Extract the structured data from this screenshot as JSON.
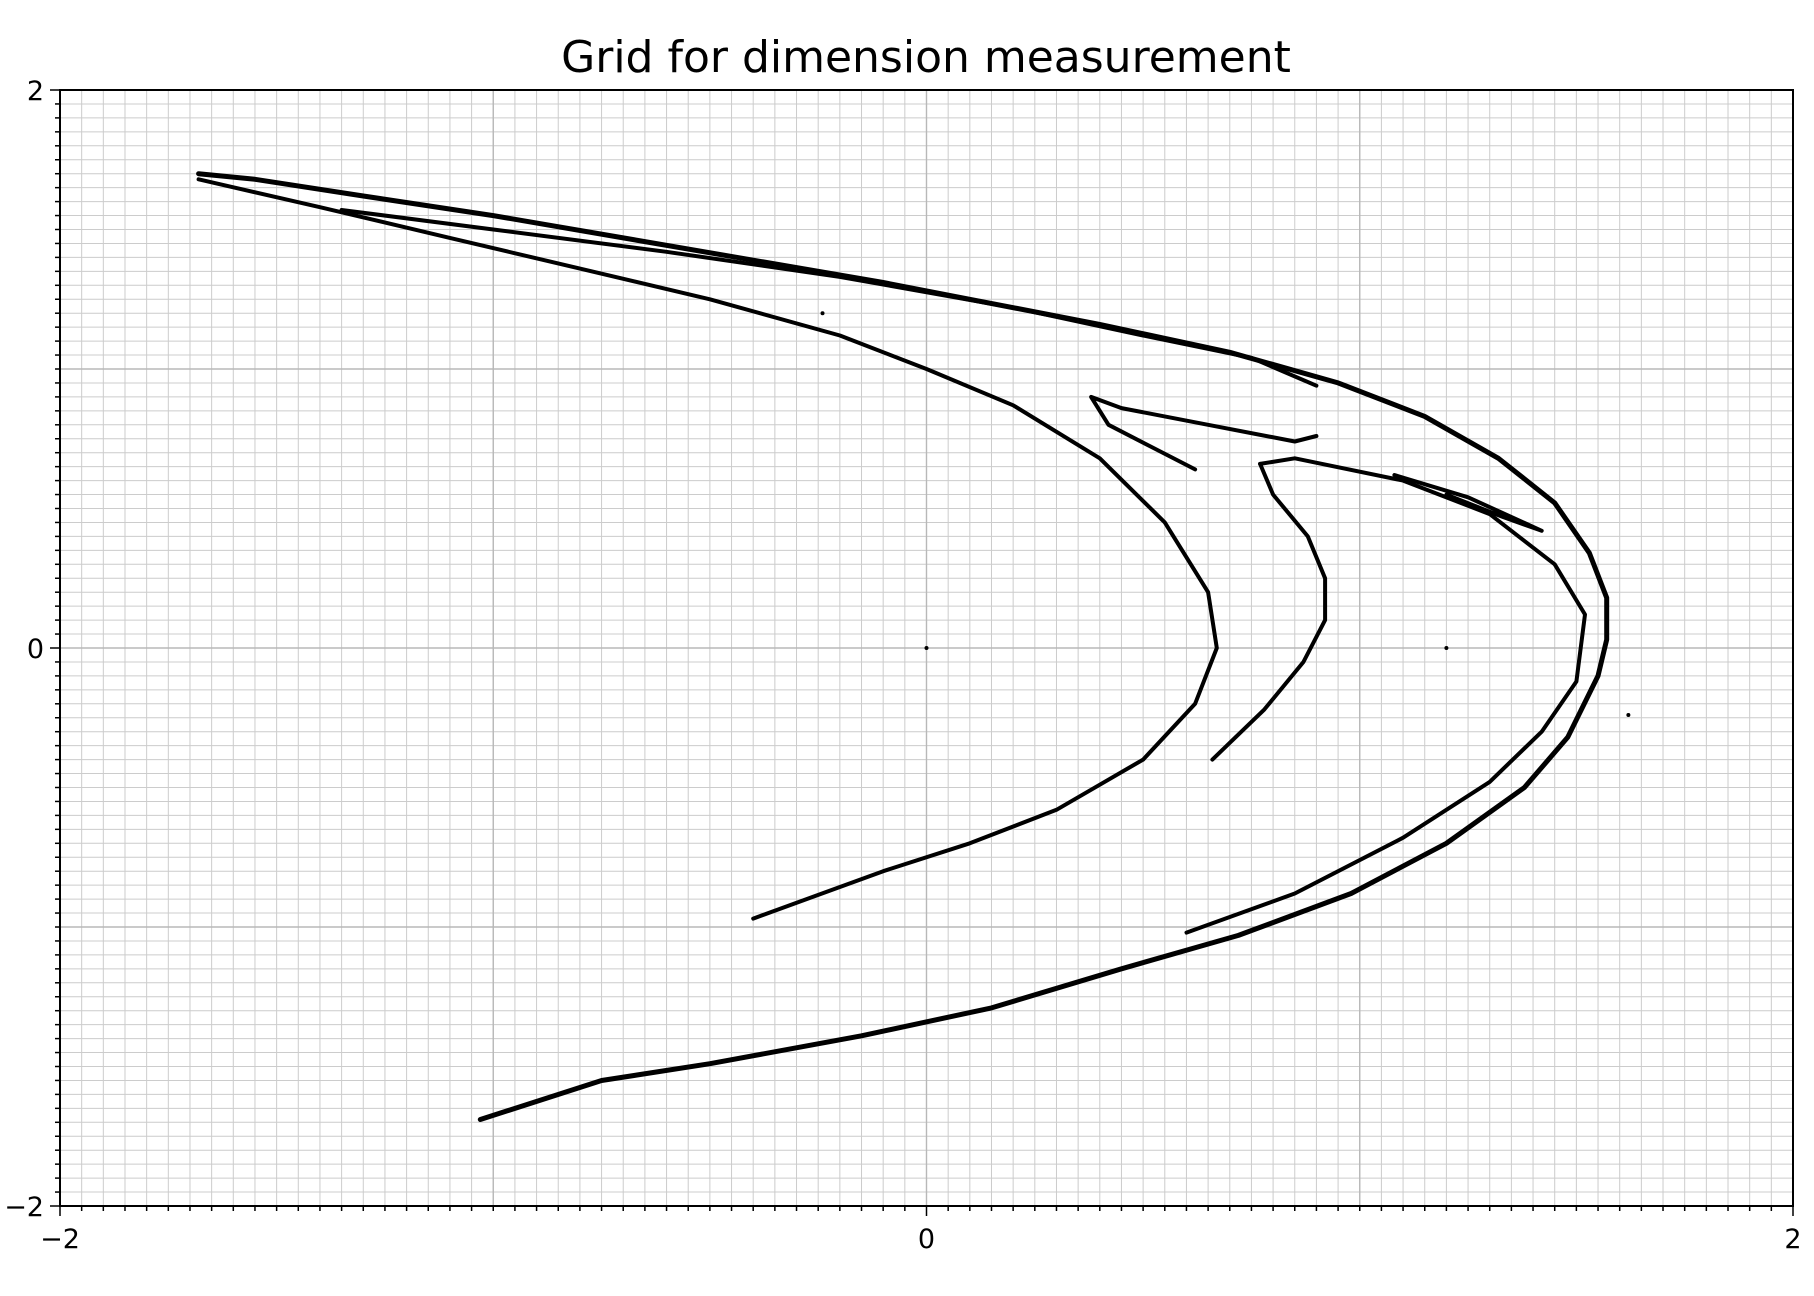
{
  "chart_data": {
    "type": "scatter",
    "title": "Grid for dimension measurement",
    "xlabel": "",
    "ylabel": "",
    "xlim": [
      -2,
      2
    ],
    "ylim": [
      -2,
      2
    ],
    "x_ticks": [
      -2,
      0,
      2
    ],
    "y_ticks": [
      -2,
      0,
      2
    ],
    "x_tick_labels": [
      "−2",
      "0",
      "2"
    ],
    "y_tick_labels": [
      "−2",
      "0",
      "2"
    ],
    "minor_grid_step": 0.05,
    "major_grid_step": 1,
    "grid": true,
    "legend": "none",
    "marker_color": "#000000",
    "grid_color": "#cccccc",
    "series": [
      {
        "values": [
          [
            -1.68,
            1.7
          ],
          [
            -1.55,
            1.68
          ],
          [
            -1.3,
            1.62
          ],
          [
            -1.0,
            1.55
          ],
          [
            -0.7,
            1.47
          ],
          [
            -0.4,
            1.39
          ],
          [
            -0.1,
            1.31
          ],
          [
            0.1,
            1.25
          ],
          [
            0.4,
            1.16
          ],
          [
            0.7,
            1.06
          ],
          [
            0.95,
            0.95
          ],
          [
            1.15,
            0.83
          ],
          [
            1.32,
            0.68
          ],
          [
            1.45,
            0.52
          ],
          [
            1.53,
            0.34
          ],
          [
            1.57,
            0.18
          ],
          [
            1.57,
            0.03
          ],
          [
            1.55,
            -0.1
          ],
          [
            1.48,
            -0.32
          ],
          [
            1.38,
            -0.5
          ],
          [
            1.2,
            -0.7
          ],
          [
            0.98,
            -0.88
          ],
          [
            0.72,
            -1.03
          ],
          [
            0.45,
            -1.15
          ],
          [
            0.15,
            -1.29
          ],
          [
            -0.15,
            -1.39
          ],
          [
            -0.5,
            -1.49
          ],
          [
            -0.75,
            -1.55
          ],
          [
            -1.03,
            -1.69
          ]
        ]
      },
      {
        "values": [
          [
            -1.68,
            1.68
          ],
          [
            -1.4,
            1.58
          ],
          [
            -1.1,
            1.47
          ],
          [
            -0.8,
            1.36
          ],
          [
            -0.5,
            1.25
          ],
          [
            -0.2,
            1.12
          ],
          [
            0.0,
            1.0
          ],
          [
            0.2,
            0.87
          ],
          [
            0.4,
            0.68
          ],
          [
            0.55,
            0.45
          ],
          [
            0.65,
            0.2
          ],
          [
            0.67,
            0.0
          ],
          [
            0.62,
            -0.2
          ],
          [
            0.5,
            -0.4
          ],
          [
            0.3,
            -0.58
          ],
          [
            0.1,
            -0.7
          ],
          [
            -0.1,
            -0.8
          ],
          [
            -0.4,
            -0.97
          ]
        ]
      },
      {
        "values": [
          [
            -1.35,
            1.57
          ],
          [
            -1.0,
            1.5
          ],
          [
            -0.6,
            1.42
          ],
          [
            -0.2,
            1.33
          ],
          [
            0.2,
            1.22
          ],
          [
            0.5,
            1.12
          ],
          [
            0.75,
            1.04
          ],
          [
            0.9,
            0.94
          ]
        ]
      },
      {
        "values": [
          [
            0.9,
            0.76
          ],
          [
            0.85,
            0.74
          ],
          [
            0.65,
            0.8
          ],
          [
            0.45,
            0.86
          ],
          [
            0.38,
            0.9
          ],
          [
            0.42,
            0.8
          ],
          [
            0.52,
            0.72
          ],
          [
            0.62,
            0.64
          ]
        ]
      },
      {
        "values": [
          [
            0.77,
            0.66
          ],
          [
            0.85,
            0.68
          ],
          [
            1.1,
            0.6
          ],
          [
            1.3,
            0.48
          ],
          [
            1.45,
            0.3
          ],
          [
            1.52,
            0.12
          ],
          [
            1.5,
            -0.12
          ],
          [
            1.42,
            -0.3
          ],
          [
            1.3,
            -0.48
          ],
          [
            1.1,
            -0.68
          ],
          [
            0.85,
            -0.88
          ],
          [
            0.6,
            -1.02
          ]
        ]
      },
      {
        "values": [
          [
            0.77,
            0.66
          ],
          [
            0.8,
            0.55
          ],
          [
            0.88,
            0.4
          ],
          [
            0.92,
            0.25
          ],
          [
            0.92,
            0.1
          ],
          [
            0.87,
            -0.05
          ],
          [
            0.78,
            -0.22
          ],
          [
            0.66,
            -0.4
          ]
        ]
      },
      {
        "values": [
          [
            1.08,
            0.62
          ],
          [
            1.25,
            0.54
          ],
          [
            1.42,
            0.42
          ],
          [
            1.33,
            0.47
          ],
          [
            1.2,
            0.55
          ]
        ]
      },
      {
        "values": [
          [
            1.2,
            0.0
          ],
          [
            0.0,
            0.0
          ],
          [
            -0.24,
            1.2
          ],
          [
            1.62,
            -0.24
          ]
        ]
      }
    ]
  }
}
